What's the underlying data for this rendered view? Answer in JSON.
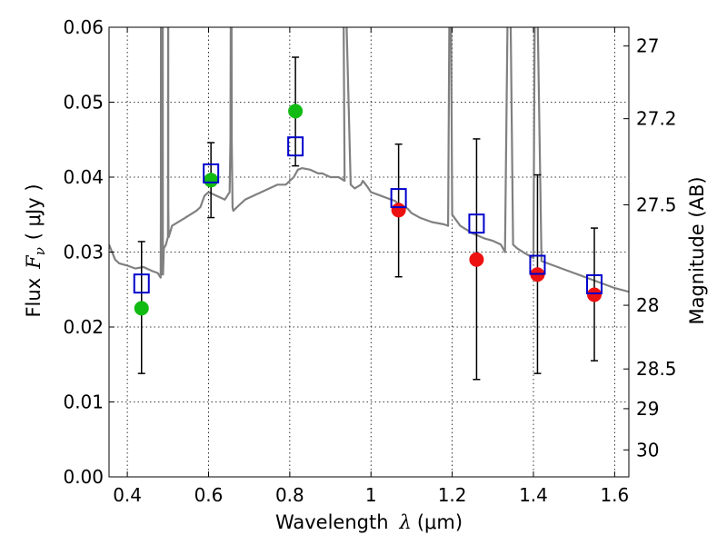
{
  "chart_data": {
    "type": "scatter",
    "xlabel_prefix": "Wavelength",
    "xlabel_symbol": "λ",
    "xlabel_unit": "(μm)",
    "ylabel_prefix": "Flux",
    "ylabel_symbol": "F",
    "ylabel_subscript": "ν",
    "ylabel_unit": "( μJy )",
    "y2label": "Magnitude (AB)",
    "xlim": [
      0.355,
      1.635
    ],
    "ylim": [
      0.0,
      0.06
    ],
    "xticks": [
      0.4,
      0.6,
      0.8,
      1.0,
      1.2,
      1.4,
      1.6
    ],
    "xtick_labels": [
      "0.4",
      "0.6",
      "0.8",
      "1",
      "1.2",
      "1.4",
      "1.6"
    ],
    "yticks": [
      0.0,
      0.01,
      0.02,
      0.03,
      0.04,
      0.05,
      0.06
    ],
    "ytick_labels": [
      "0.00",
      "0.01",
      "0.02",
      "0.03",
      "0.04",
      "0.05",
      "0.06"
    ],
    "y2ticks": [
      {
        "label": "27",
        "flux": 0.0575
      },
      {
        "label": "27.2",
        "flux": 0.0478
      },
      {
        "label": "27.5",
        "flux": 0.0363
      },
      {
        "label": "28",
        "flux": 0.0229
      },
      {
        "label": "28.5",
        "flux": 0.0144
      },
      {
        "label": "29",
        "flux": 0.0091
      },
      {
        "label": "30",
        "flux": 0.0036
      }
    ],
    "grid": true,
    "colors": {
      "model": "#808080",
      "observed_optical": "#11bb11",
      "observed_nir": "#ee1111",
      "model_photometry": "#0000cc",
      "errorbar": "#000000"
    },
    "series": [
      {
        "role": "observed_optical",
        "x": [
          0.435,
          0.606,
          0.814
        ],
        "y": [
          0.0225,
          0.0396,
          0.0488
        ],
        "yerr_low": [
          0.0138,
          0.0346,
          0.0415
        ],
        "yerr_high": [
          0.0314,
          0.0446,
          0.056
        ]
      },
      {
        "role": "observed_nir",
        "x": [
          1.068,
          1.26,
          1.41,
          1.55
        ],
        "y": [
          0.0356,
          0.029,
          0.027,
          0.0243
        ],
        "yerr_low": [
          0.0267,
          0.013,
          0.0138,
          0.0155
        ],
        "yerr_high": [
          0.0444,
          0.0451,
          0.0403,
          0.0332
        ]
      },
      {
        "role": "model_photometry",
        "x": [
          0.435,
          0.606,
          0.814,
          1.068,
          1.26,
          1.41,
          1.55
        ],
        "y": [
          0.0258,
          0.0405,
          0.0441,
          0.0372,
          0.0338,
          0.0283,
          0.0257
        ]
      },
      {
        "role": "model_spectrum",
        "x": [
          0.355,
          0.37,
          0.38,
          0.4,
          0.42,
          0.44,
          0.46,
          0.475,
          0.482,
          0.4825,
          0.483,
          0.4835,
          0.484,
          0.4845,
          0.486,
          0.4865,
          0.487,
          0.4875,
          0.488,
          0.49,
          0.495,
          0.5,
          0.5002,
          0.5007,
          0.501,
          0.5015,
          0.502,
          0.51,
          0.54,
          0.57,
          0.58,
          0.59,
          0.6,
          0.62,
          0.64,
          0.652,
          0.654,
          0.6555,
          0.6563,
          0.657,
          0.659,
          0.661,
          0.67,
          0.69,
          0.71,
          0.73,
          0.75,
          0.77,
          0.79,
          0.8,
          0.81,
          0.82,
          0.83,
          0.85,
          0.87,
          0.88,
          0.9,
          0.92,
          0.935,
          0.9305,
          0.95,
          0.96,
          0.975,
          0.98,
          0.99,
          1.0,
          1.02,
          1.04,
          1.06,
          1.07,
          1.09,
          1.1,
          1.12,
          1.15,
          1.18,
          1.19,
          1.195,
          1.2,
          1.22,
          1.25,
          1.28,
          1.3,
          1.32,
          1.33,
          1.34,
          1.35,
          1.36,
          1.38,
          1.4,
          1.405,
          1.42,
          1.45,
          1.5,
          1.55,
          1.6,
          1.635
        ],
        "y": [
          0.031,
          0.029,
          0.0285,
          0.0282,
          0.0278,
          0.028,
          0.0275,
          0.0272,
          0.0266,
          0.034,
          0.08,
          0.034,
          0.027,
          0.032,
          0.08,
          0.04,
          0.08,
          0.032,
          0.027,
          0.0305,
          0.031,
          0.032,
          0.036,
          0.08,
          0.036,
          0.033,
          0.032,
          0.0335,
          0.0345,
          0.0355,
          0.036,
          0.0375,
          0.038,
          0.0375,
          0.037,
          0.038,
          0.045,
          0.08,
          0.08,
          0.045,
          0.036,
          0.0355,
          0.036,
          0.037,
          0.0375,
          0.038,
          0.0385,
          0.039,
          0.039,
          0.0395,
          0.04,
          0.041,
          0.0412,
          0.041,
          0.0405,
          0.0405,
          0.04,
          0.04,
          0.0395,
          0.08,
          0.039,
          0.0385,
          0.039,
          0.0395,
          0.0388,
          0.038,
          0.0376,
          0.0372,
          0.0368,
          0.0362,
          0.0358,
          0.0352,
          0.0346,
          0.034,
          0.0337,
          0.0335,
          0.08,
          0.035,
          0.0335,
          0.0325,
          0.0318,
          0.0315,
          0.031,
          0.03,
          0.08,
          0.031,
          0.0305,
          0.0298,
          0.0292,
          0.08,
          0.0288,
          0.0282,
          0.0272,
          0.0262,
          0.0252,
          0.0247
        ]
      }
    ]
  }
}
